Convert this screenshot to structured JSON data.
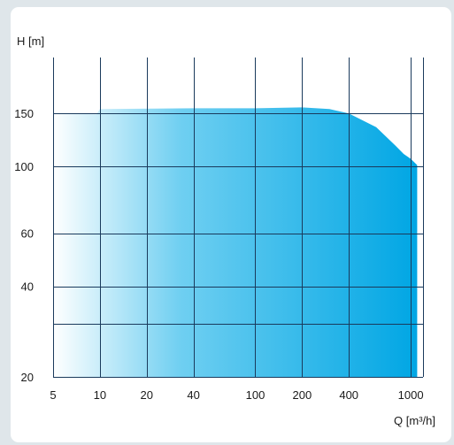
{
  "chart_data": {
    "type": "area",
    "title": "",
    "xlabel": "Q [m³/h]",
    "ylabel": "H [m]",
    "x_scale": "log",
    "y_scale": "log",
    "xlim": [
      5,
      1200
    ],
    "ylim": [
      20,
      230
    ],
    "x_ticks": [
      5,
      10,
      20,
      40,
      100,
      200,
      400,
      1000
    ],
    "x_tick_labels": [
      "5",
      "10",
      "20",
      "40",
      "100",
      "200",
      "400",
      "1000"
    ],
    "y_ticks": [
      20,
      40,
      60,
      100,
      150
    ],
    "y_tick_labels": [
      "20",
      "40",
      "60",
      "100",
      "150"
    ],
    "y_gridlines": [
      20,
      30,
      40,
      60,
      100,
      150
    ],
    "grid": true,
    "envelope": {
      "x": [
        5,
        9.5,
        10,
        40,
        100,
        200,
        300,
        400,
        600,
        800,
        900,
        1000,
        1100,
        1100
      ],
      "y": [
        150,
        149,
        155,
        156,
        156,
        157,
        155,
        150,
        135,
        117,
        110,
        106,
        101,
        20
      ]
    },
    "fill_colors": {
      "start": "#ffffff",
      "mid": "#6fcff1",
      "end": "#00a6e4"
    },
    "gridline_color": "#1a3a5c"
  }
}
